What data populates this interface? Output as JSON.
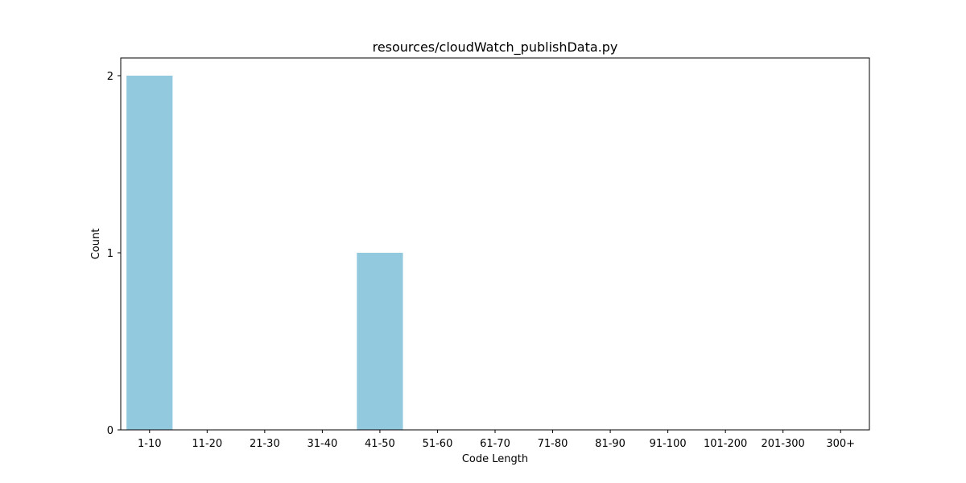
{
  "chart_data": {
    "type": "bar",
    "title": "resources/cloudWatch_publishData.py",
    "xlabel": "Code Length",
    "ylabel": "Count",
    "categories": [
      "1-10",
      "11-20",
      "21-30",
      "31-40",
      "41-50",
      "51-60",
      "61-70",
      "71-80",
      "81-90",
      "91-100",
      "101-200",
      "201-300",
      "300+"
    ],
    "values": [
      2,
      0,
      0,
      0,
      1,
      0,
      0,
      0,
      0,
      0,
      0,
      0,
      0
    ],
    "ylim": [
      0,
      2.1
    ],
    "yticks": [
      0,
      1,
      2
    ],
    "grid": false,
    "legend": "none",
    "bar_color": "#92c9df"
  }
}
